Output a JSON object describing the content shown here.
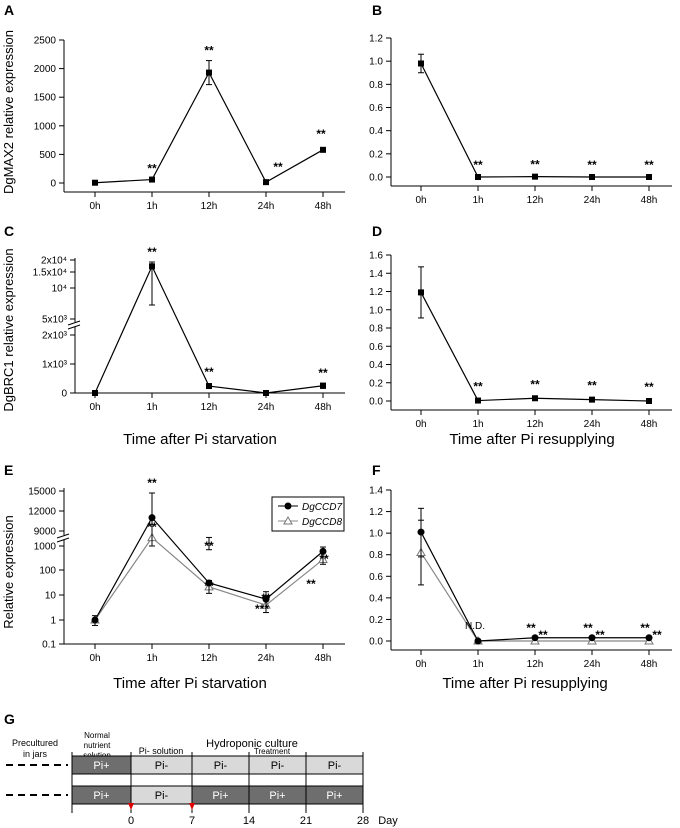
{
  "chart_data": [
    {
      "panel": "A",
      "type": "line",
      "categories": [
        "0h",
        "1h",
        "12h",
        "24h",
        "48h"
      ],
      "values": [
        5,
        60,
        1930,
        15,
        580
      ],
      "errors": [
        0,
        0,
        210,
        0,
        0
      ],
      "sig": [
        "",
        "**",
        "**",
        "**",
        "**"
      ],
      "ylabel": "DgMAX2 relative expression",
      "ylim": [
        0,
        2500
      ],
      "yticks": [
        0,
        500,
        1000,
        1500,
        2000,
        2500
      ],
      "xlabel": ""
    },
    {
      "panel": "B",
      "type": "line",
      "categories": [
        "0h",
        "1h",
        "12h",
        "24h",
        "48h"
      ],
      "values": [
        0.98,
        0.0,
        0.003,
        0.0,
        0.0
      ],
      "errors": [
        0.08,
        0,
        0,
        0,
        0
      ],
      "sig": [
        "",
        "**",
        "**",
        "**",
        "**"
      ],
      "ylim": [
        0,
        1.2
      ],
      "yticks": [
        "0.0",
        "0.2",
        "0.4",
        "0.6",
        "0.8",
        "1.0",
        "1.2"
      ],
      "xlabel": ""
    },
    {
      "panel": "C",
      "type": "line",
      "categories": [
        "0h",
        "1h",
        "12h",
        "24h",
        "48h"
      ],
      "values": [
        0,
        13500,
        240,
        0,
        250
      ],
      "errors": [
        0,
        6300,
        0,
        0,
        90
      ],
      "sig": [
        "",
        "**",
        "**",
        "",
        "**"
      ],
      "ylabel": "DgBRC1 relative expression",
      "ytick_labels": [
        "0",
        "1x10³",
        "2x10³",
        "5x10³",
        "10⁴",
        "1.5x10⁴",
        "2x10⁴"
      ],
      "xlabel": "Time after Pi starvation"
    },
    {
      "panel": "D",
      "type": "line",
      "categories": [
        "0h",
        "1h",
        "12h",
        "24h",
        "48h"
      ],
      "values": [
        1.19,
        0.005,
        0.03,
        0.015,
        0.0
      ],
      "errors": [
        0.28,
        0,
        0,
        0,
        0
      ],
      "sig": [
        "",
        "**",
        "**",
        "**",
        "**"
      ],
      "ylim": [
        0,
        1.6
      ],
      "yticks": [
        "0.0",
        "0.2",
        "0.4",
        "0.6",
        "0.8",
        "1.0",
        "1.2",
        "1.4",
        "1.6"
      ],
      "xlabel": "Time after Pi resupplying"
    },
    {
      "panel": "E",
      "type": "line",
      "categories": [
        "0h",
        "1h",
        "12h",
        "24h",
        "48h"
      ],
      "series": [
        {
          "name": "DgCCD7",
          "values": [
            1,
            11000,
            1200,
            7,
            600
          ],
          "sig": [
            "",
            "**",
            "**",
            "**",
            "**"
          ]
        },
        {
          "name": "DgCCD8",
          "values": [
            1,
            8000,
            22,
            4,
            280
          ],
          "sig": [
            "",
            "**",
            "**",
            "***",
            "**"
          ]
        }
      ],
      "ylabel": "Relative expression",
      "ytick_labels": [
        "0.1",
        "1",
        "10",
        "100",
        "1000",
        "9000",
        "12000",
        "15000"
      ],
      "xlabel": "Time after Pi starvation"
    },
    {
      "panel": "F",
      "type": "line",
      "categories": [
        "0h",
        "1h",
        "12h",
        "24h",
        "48h"
      ],
      "series": [
        {
          "name": "DgCCD7",
          "values": [
            1.01,
            0.0,
            0.03,
            0.03,
            0.03
          ],
          "sig": [
            "",
            "",
            "**",
            "**",
            "**"
          ]
        },
        {
          "name": "DgCCD8",
          "values": [
            0.82,
            0.0,
            0.0,
            0.0,
            0.0
          ],
          "sig": [
            "",
            "",
            "**",
            "**",
            "**"
          ]
        }
      ],
      "annotation": "N.D.",
      "ylim": [
        0,
        1.4
      ],
      "yticks": [
        "0.0",
        "0.2",
        "0.4",
        "0.6",
        "0.8",
        "1.0",
        "1.2",
        "1.4"
      ],
      "xlabel": "Time after Pi resupplying"
    }
  ],
  "panel_letters": [
    "A",
    "B",
    "C",
    "D",
    "E",
    "F",
    "G"
  ],
  "diagram": {
    "title": "Hydroponic culture",
    "precultured": "Precultured in jars",
    "normal_nutrient": "Normal nutrient solution",
    "pi_minus_solution": "Pi-  solution",
    "treatment": "Treatment",
    "row1": [
      "Pi+",
      "Pi-",
      "Pi-",
      "Pi-",
      "Pi-"
    ],
    "row2": [
      "Pi+",
      "Pi-",
      "Pi+",
      "Pi+",
      "Pi+"
    ],
    "days": [
      "0",
      "7",
      "14",
      "21",
      "28"
    ],
    "day_label": "Day"
  }
}
